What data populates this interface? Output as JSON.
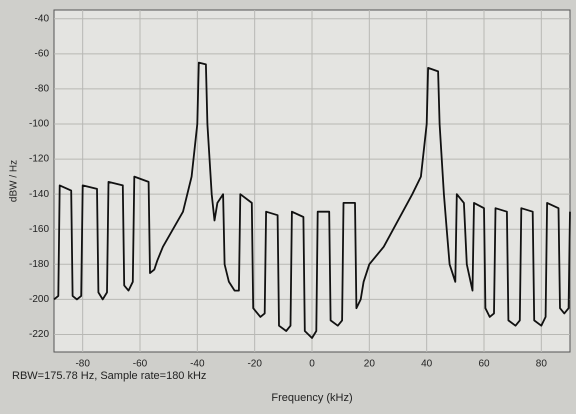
{
  "chart_data": {
    "type": "line",
    "xlabel": "Frequency (kHz)",
    "ylabel": "dBW / Hz",
    "annotation": "RBW=175.78 Hz, Sample rate=180 kHz",
    "xlim": [
      -90,
      90
    ],
    "ylim": [
      -230,
      -35
    ],
    "xticks": [
      -80,
      -60,
      -40,
      -20,
      0,
      20,
      40,
      60,
      80
    ],
    "yticks": [
      -40,
      -60,
      -80,
      -100,
      -120,
      -140,
      -160,
      -180,
      -200,
      -220
    ],
    "grid": true,
    "x": [
      -90,
      -88.5,
      -88,
      -84,
      -83.5,
      -82,
      -80.5,
      -80,
      -75,
      -74.5,
      -73,
      -71.5,
      -71,
      -66,
      -65.5,
      -64,
      -62.5,
      -62,
      -57,
      -56.5,
      -55,
      -54,
      -52,
      -45,
      -42,
      -40,
      -39.5,
      -37,
      -36.5,
      -35,
      -34,
      -33,
      -31,
      -30.5,
      -29,
      -27,
      -25.5,
      -25,
      -21,
      -20.5,
      -18,
      -16.5,
      -16,
      -12,
      -11.5,
      -9,
      -7.5,
      -7,
      -3,
      -2.5,
      0,
      1.5,
      2,
      6,
      6.5,
      9,
      10.5,
      11,
      15,
      15.5,
      17,
      18,
      20,
      25,
      35,
      38,
      40,
      40.5,
      44,
      44.5,
      46,
      47,
      48,
      50,
      50.5,
      53,
      54,
      56,
      56.5,
      60,
      60.5,
      62,
      63.5,
      64,
      68,
      68.5,
      71,
      72.5,
      73,
      77,
      77.5,
      80,
      81.5,
      82,
      86,
      86.5,
      88,
      89.5,
      90
    ],
    "series": [
      {
        "color": "#111111",
        "values": [
          -200,
          -198,
          -135,
          -138,
          -198,
          -200,
          -198,
          -135,
          -137,
          -196,
          -200,
          -196,
          -133,
          -135,
          -192,
          -195,
          -190,
          -130,
          -133,
          -185,
          -183,
          -178,
          -170,
          -150,
          -130,
          -100,
          -65,
          -66,
          -100,
          -140,
          -155,
          -145,
          -140,
          -180,
          -190,
          -195,
          -195,
          -140,
          -145,
          -205,
          -210,
          -208,
          -150,
          -152,
          -215,
          -218,
          -215,
          -150,
          -153,
          -218,
          -222,
          -218,
          -150,
          -150,
          -212,
          -215,
          -212,
          -145,
          -145,
          -205,
          -200,
          -190,
          -180,
          -170,
          -140,
          -130,
          -100,
          -68,
          -70,
          -100,
          -140,
          -160,
          -180,
          -190,
          -140,
          -145,
          -180,
          -195,
          -145,
          -148,
          -205,
          -210,
          -208,
          -148,
          -150,
          -212,
          -215,
          -212,
          -148,
          -150,
          -212,
          -215,
          -210,
          -145,
          -148,
          -205,
          -208,
          -205,
          -150
        ]
      }
    ]
  }
}
